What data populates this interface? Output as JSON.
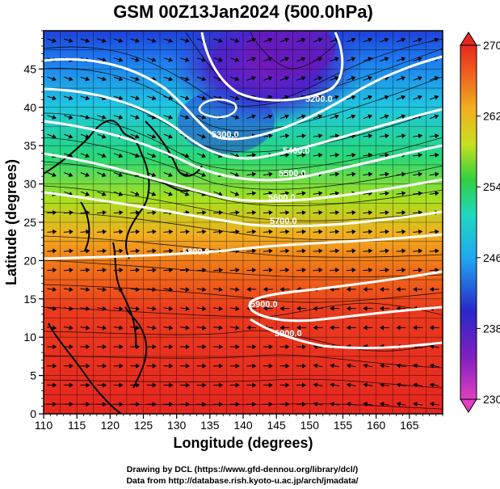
{
  "title": "GSM 00Z13Jan2024 (500.0hPa)",
  "xlabel": "Longitude (degrees)",
  "ylabel": "Latitude  (degrees)",
  "x_ticks": [
    "110",
    "115",
    "120",
    "125",
    "130",
    "135",
    "140",
    "145",
    "150",
    "155",
    "160",
    "165"
  ],
  "y_ticks": [
    "0",
    "5",
    "10",
    "15",
    "20",
    "25",
    "30",
    "35",
    "40",
    "45"
  ],
  "colorbar_ticks": [
    "270",
    "262",
    "254",
    "246",
    "238",
    "230"
  ],
  "contour_labels": [
    "5200.0",
    "5300.0",
    "5400.0",
    "5500.0",
    "5600.0",
    "5700.0",
    "5800.0",
    "5900.0",
    "5900.0"
  ],
  "credits": [
    "Drawing by DCL (https://www.gfd-dennou.org/library/dcl/)",
    "Data from http://database.rish.kyoto-u.ac.jp/arch/jmadata/"
  ],
  "map": {
    "lon_range": [
      110,
      170
    ],
    "lat_range": [
      0,
      50
    ],
    "field": "temperature (K), 500 hPa",
    "colorbar_range": [
      230,
      270
    ],
    "colors": [
      "#e040c0",
      "#8020c0",
      "#3030d0",
      "#20a0f0",
      "#20d8c0",
      "#30d040",
      "#c0e020",
      "#f0b020",
      "#f06020",
      "#e82820"
    ],
    "contours": "geopotential height",
    "overlay": "wind streamlines"
  }
}
